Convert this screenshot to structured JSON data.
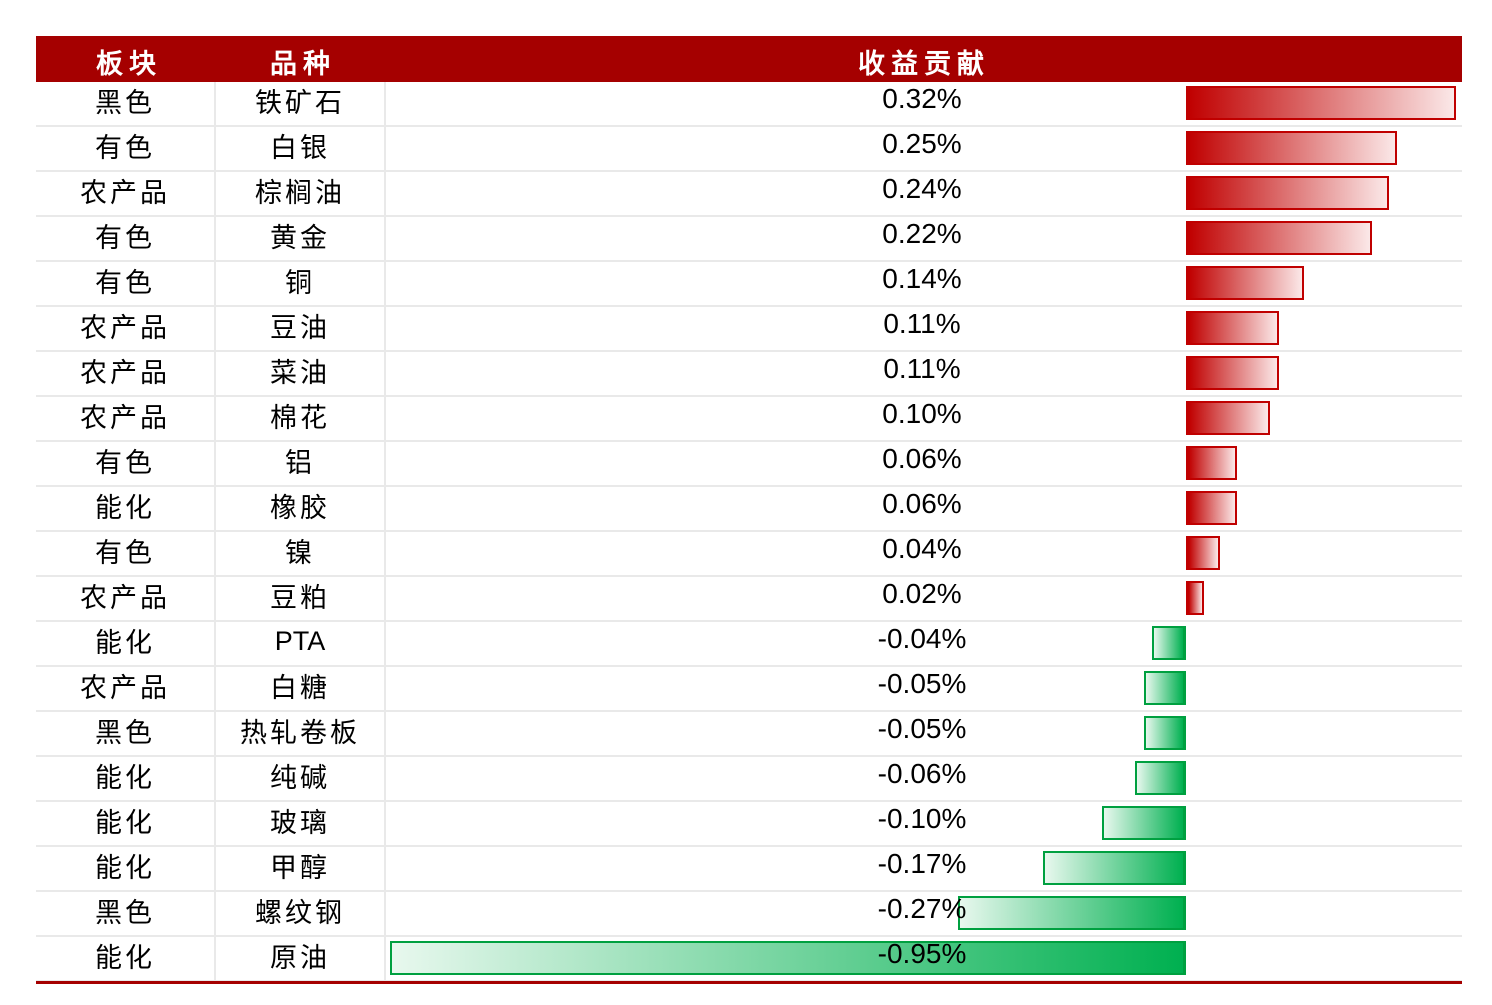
{
  "header": {
    "col_sector": "板块",
    "col_variety": "品种",
    "col_contribution": "收益贡献"
  },
  "colors": {
    "header_bg": "#a50000",
    "positive": "#c00000",
    "negative": "#00b050"
  },
  "chart_data": {
    "type": "bar",
    "orientation": "horizontal",
    "columns": [
      "板块",
      "品种",
      "收益贡献"
    ],
    "rows": [
      {
        "sector": "黑色",
        "variety": "铁矿石",
        "label": "0.32%",
        "value": 0.32
      },
      {
        "sector": "有色",
        "variety": "白银",
        "label": "0.25%",
        "value": 0.25
      },
      {
        "sector": "农产品",
        "variety": "棕榈油",
        "label": "0.24%",
        "value": 0.24
      },
      {
        "sector": "有色",
        "variety": "黄金",
        "label": "0.22%",
        "value": 0.22
      },
      {
        "sector": "有色",
        "variety": "铜",
        "label": "0.14%",
        "value": 0.14
      },
      {
        "sector": "农产品",
        "variety": "豆油",
        "label": "0.11%",
        "value": 0.11
      },
      {
        "sector": "农产品",
        "variety": "菜油",
        "label": "0.11%",
        "value": 0.11
      },
      {
        "sector": "农产品",
        "variety": "棉花",
        "label": "0.10%",
        "value": 0.1
      },
      {
        "sector": "有色",
        "variety": "铝",
        "label": "0.06%",
        "value": 0.06
      },
      {
        "sector": "能化",
        "variety": "橡胶",
        "label": "0.06%",
        "value": 0.06
      },
      {
        "sector": "有色",
        "variety": "镍",
        "label": "0.04%",
        "value": 0.04
      },
      {
        "sector": "农产品",
        "variety": "豆粕",
        "label": "0.02%",
        "value": 0.02
      },
      {
        "sector": "能化",
        "variety": "PTA",
        "label": "-0.04%",
        "value": -0.04
      },
      {
        "sector": "农产品",
        "variety": "白糖",
        "label": "-0.05%",
        "value": -0.05
      },
      {
        "sector": "黑色",
        "variety": "热轧卷板",
        "label": "-0.05%",
        "value": -0.05
      },
      {
        "sector": "能化",
        "variety": "纯碱",
        "label": "-0.06%",
        "value": -0.06
      },
      {
        "sector": "能化",
        "variety": "玻璃",
        "label": "-0.10%",
        "value": -0.1
      },
      {
        "sector": "能化",
        "variety": "甲醇",
        "label": "-0.17%",
        "value": -0.17
      },
      {
        "sector": "黑色",
        "variety": "螺纹钢",
        "label": "-0.27%",
        "value": -0.27
      },
      {
        "sector": "能化",
        "variety": "原油",
        "label": "-0.95%",
        "value": -0.95
      }
    ]
  }
}
